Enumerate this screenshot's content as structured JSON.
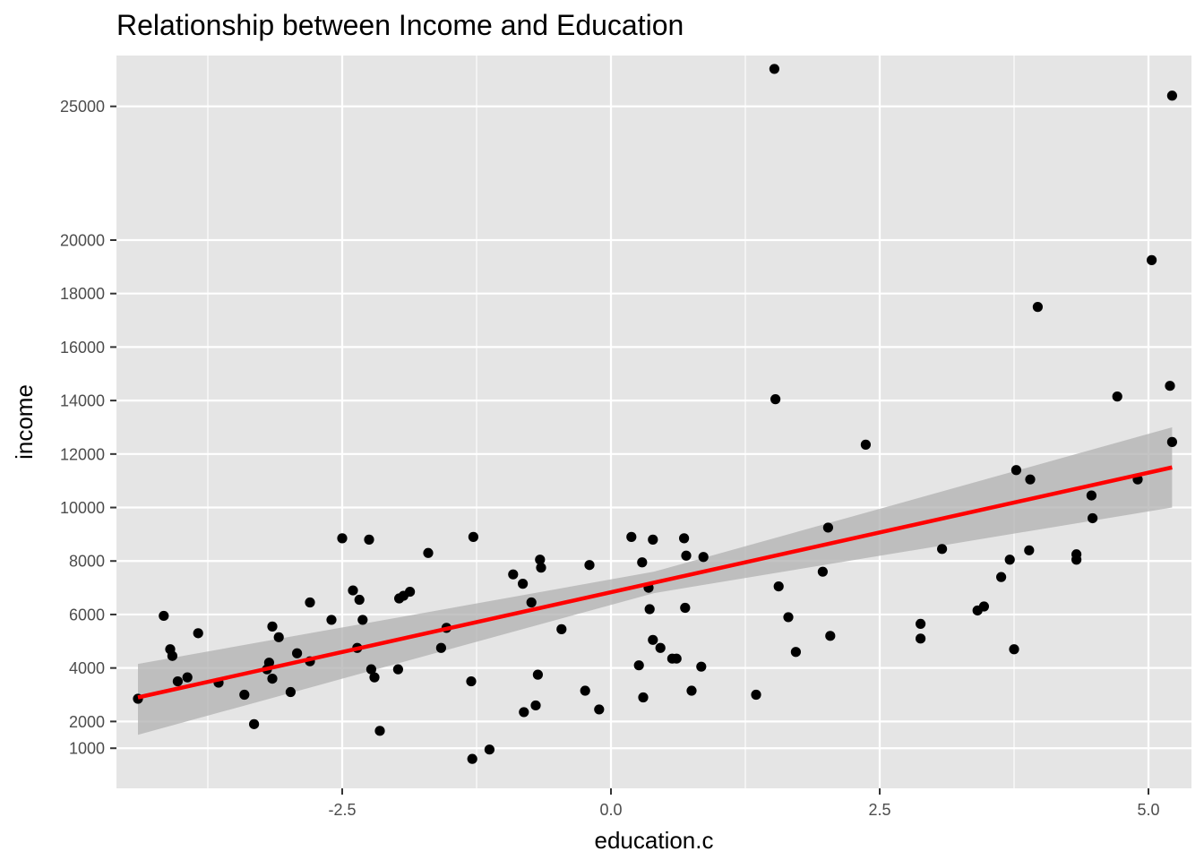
{
  "chart_data": {
    "type": "scatter",
    "title": "Relationship between Income and Education",
    "xlabel": "education.c",
    "ylabel": "income",
    "xlim": [
      -4.6,
      5.4
    ],
    "ylim": [
      -500,
      26900
    ],
    "x_ticks": [
      -2.5,
      0.0,
      2.5,
      5.0
    ],
    "x_tick_labels": [
      "-2.5",
      "0.0",
      "2.5",
      "5.0"
    ],
    "y_ticks": [
      1000,
      2000,
      4000,
      6000,
      8000,
      10000,
      12000,
      14000,
      16000,
      18000,
      20000,
      25000
    ],
    "y_tick_labels": [
      "1000",
      "2000",
      "4000",
      "6000",
      "8000",
      "10000",
      "12000",
      "14000",
      "16000",
      "18000",
      "20000",
      "25000"
    ],
    "grid": true,
    "colors": {
      "panel": "#e5e5e5",
      "grid": "#ffffff",
      "points": "#000000",
      "fit_line": "#ff0000",
      "ribbon": "#b3b3b3"
    },
    "points": [
      {
        "x": -4.4,
        "y": 2850
      },
      {
        "x": -4.16,
        "y": 5950
      },
      {
        "x": -4.1,
        "y": 4700
      },
      {
        "x": -4.08,
        "y": 4450
      },
      {
        "x": -4.03,
        "y": 3500
      },
      {
        "x": -3.94,
        "y": 3650
      },
      {
        "x": -3.84,
        "y": 5300
      },
      {
        "x": -3.65,
        "y": 3450
      },
      {
        "x": -3.41,
        "y": 3000
      },
      {
        "x": -3.32,
        "y": 1900
      },
      {
        "x": -3.2,
        "y": 3950
      },
      {
        "x": -3.18,
        "y": 4200
      },
      {
        "x": -3.15,
        "y": 5550
      },
      {
        "x": -3.15,
        "y": 3600
      },
      {
        "x": -3.09,
        "y": 5150
      },
      {
        "x": -2.98,
        "y": 3100
      },
      {
        "x": -2.92,
        "y": 4550
      },
      {
        "x": -2.8,
        "y": 6450
      },
      {
        "x": -2.8,
        "y": 4250
      },
      {
        "x": -2.6,
        "y": 5800
      },
      {
        "x": -2.5,
        "y": 8850
      },
      {
        "x": -2.4,
        "y": 6900
      },
      {
        "x": -2.36,
        "y": 4750
      },
      {
        "x": -2.34,
        "y": 6550
      },
      {
        "x": -2.31,
        "y": 5800
      },
      {
        "x": -2.25,
        "y": 8800
      },
      {
        "x": -2.23,
        "y": 3950
      },
      {
        "x": -2.2,
        "y": 3650
      },
      {
        "x": -2.15,
        "y": 1650
      },
      {
        "x": -1.98,
        "y": 3950
      },
      {
        "x": -1.97,
        "y": 6600
      },
      {
        "x": -1.93,
        "y": 6700
      },
      {
        "x": -1.87,
        "y": 6850
      },
      {
        "x": -1.7,
        "y": 8300
      },
      {
        "x": -1.58,
        "y": 4750
      },
      {
        "x": -1.53,
        "y": 5500
      },
      {
        "x": -1.3,
        "y": 3500
      },
      {
        "x": -1.29,
        "y": 600
      },
      {
        "x": -1.28,
        "y": 8900
      },
      {
        "x": -1.13,
        "y": 950
      },
      {
        "x": -0.91,
        "y": 7500
      },
      {
        "x": -0.82,
        "y": 7150
      },
      {
        "x": -0.81,
        "y": 2350
      },
      {
        "x": -0.74,
        "y": 6450
      },
      {
        "x": -0.7,
        "y": 2600
      },
      {
        "x": -0.68,
        "y": 3750
      },
      {
        "x": -0.66,
        "y": 8050
      },
      {
        "x": -0.65,
        "y": 7750
      },
      {
        "x": -0.46,
        "y": 5450
      },
      {
        "x": -0.24,
        "y": 3150
      },
      {
        "x": -0.2,
        "y": 7850
      },
      {
        "x": -0.11,
        "y": 2450
      },
      {
        "x": 0.19,
        "y": 8900
      },
      {
        "x": 0.26,
        "y": 4100
      },
      {
        "x": 0.29,
        "y": 7950
      },
      {
        "x": 0.3,
        "y": 2900
      },
      {
        "x": 0.35,
        "y": 7000
      },
      {
        "x": 0.36,
        "y": 6200
      },
      {
        "x": 0.39,
        "y": 8800
      },
      {
        "x": 0.39,
        "y": 5050
      },
      {
        "x": 0.46,
        "y": 4750
      },
      {
        "x": 0.57,
        "y": 4350
      },
      {
        "x": 0.61,
        "y": 4350
      },
      {
        "x": 0.68,
        "y": 8850
      },
      {
        "x": 0.69,
        "y": 6250
      },
      {
        "x": 0.7,
        "y": 8200
      },
      {
        "x": 0.75,
        "y": 3150
      },
      {
        "x": 0.84,
        "y": 4050
      },
      {
        "x": 0.86,
        "y": 8150
      },
      {
        "x": 1.35,
        "y": 3000
      },
      {
        "x": 1.52,
        "y": 26400
      },
      {
        "x": 1.53,
        "y": 14050
      },
      {
        "x": 1.56,
        "y": 7050
      },
      {
        "x": 1.65,
        "y": 5900
      },
      {
        "x": 1.72,
        "y": 4600
      },
      {
        "x": 1.97,
        "y": 7600
      },
      {
        "x": 2.02,
        "y": 9250
      },
      {
        "x": 2.04,
        "y": 5200
      },
      {
        "x": 2.37,
        "y": 12350
      },
      {
        "x": 2.88,
        "y": 5650
      },
      {
        "x": 2.88,
        "y": 5100
      },
      {
        "x": 3.08,
        "y": 8450
      },
      {
        "x": 3.41,
        "y": 6150
      },
      {
        "x": 3.47,
        "y": 6300
      },
      {
        "x": 3.63,
        "y": 7400
      },
      {
        "x": 3.71,
        "y": 8050
      },
      {
        "x": 3.75,
        "y": 4700
      },
      {
        "x": 3.77,
        "y": 11400
      },
      {
        "x": 3.89,
        "y": 8400
      },
      {
        "x": 3.9,
        "y": 11050
      },
      {
        "x": 3.97,
        "y": 17500
      },
      {
        "x": 4.33,
        "y": 8250
      },
      {
        "x": 4.33,
        "y": 8050
      },
      {
        "x": 4.47,
        "y": 10450
      },
      {
        "x": 4.48,
        "y": 9600
      },
      {
        "x": 4.71,
        "y": 14150
      },
      {
        "x": 4.9,
        "y": 11050
      },
      {
        "x": 5.03,
        "y": 19250
      },
      {
        "x": 5.2,
        "y": 14550
      },
      {
        "x": 5.22,
        "y": 12450
      },
      {
        "x": 5.22,
        "y": 25400
      }
    ],
    "fit": {
      "x": [
        -4.4,
        5.22
      ],
      "y": [
        2900,
        11500
      ]
    },
    "confidence_band": {
      "x": [
        -4.4,
        0.4,
        5.22
      ],
      "lower": [
        1500,
        6800,
        10000
      ],
      "upper": [
        4150,
        7600,
        13000
      ]
    }
  }
}
